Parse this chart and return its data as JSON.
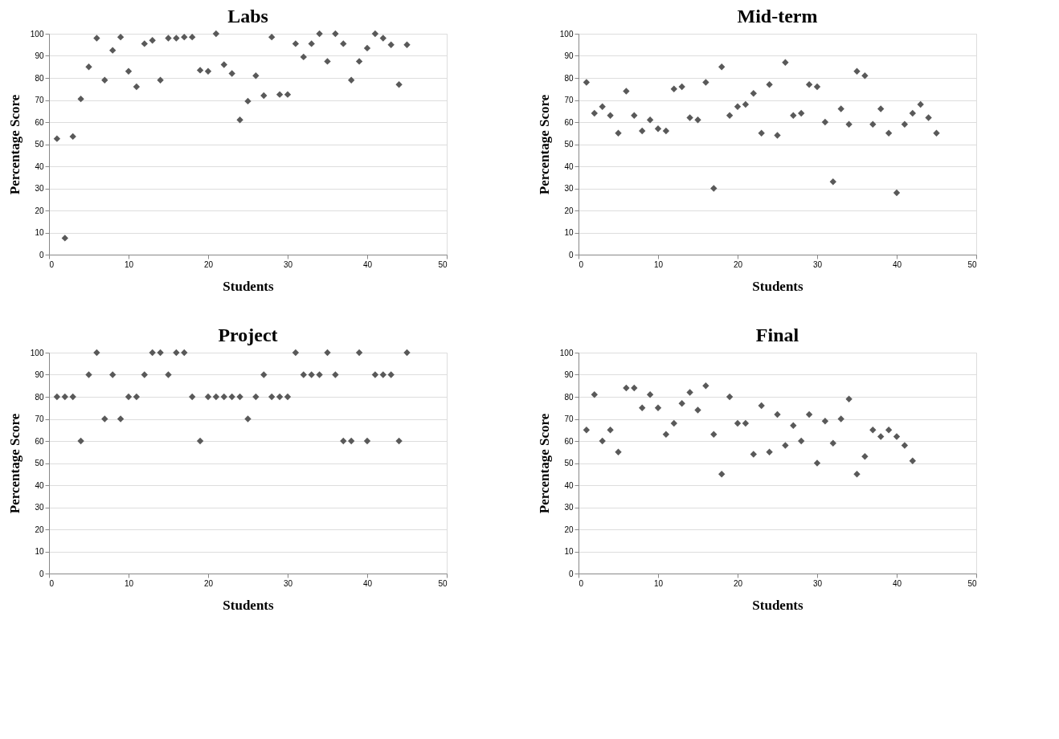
{
  "chart_data": [
    {
      "type": "scatter",
      "title": "Labs",
      "xlabel": "Students",
      "ylabel": "Percentage Score",
      "color": "#595959",
      "marker": "diamond",
      "grid": "y",
      "xlim": [
        0,
        50
      ],
      "xticks": [
        0,
        10,
        20,
        30,
        40,
        50
      ],
      "ylim": [
        0,
        100
      ],
      "yticks": [
        0,
        10,
        20,
        30,
        40,
        50,
        60,
        70,
        80,
        90,
        100
      ],
      "x": [
        1,
        2,
        3,
        4,
        5,
        6,
        7,
        8,
        9,
        10,
        11,
        12,
        13,
        14,
        15,
        16,
        17,
        18,
        19,
        20,
        21,
        22,
        23,
        24,
        25,
        26,
        27,
        28,
        29,
        30,
        31,
        32,
        33,
        34,
        35,
        36,
        37,
        38,
        39,
        40,
        41,
        42,
        43,
        44,
        45
      ],
      "values": [
        52.5,
        7.5,
        53.5,
        70.5,
        85,
        98,
        79,
        92.5,
        98.5,
        83,
        76,
        95.5,
        97,
        79,
        98,
        98,
        98.5,
        98.5,
        83.5,
        83,
        100,
        86,
        82,
        61,
        69.5,
        81,
        72,
        98.5,
        72.5,
        72.5,
        95.5,
        89.5,
        95.5,
        100,
        87.5,
        100,
        95.5,
        79,
        87.5,
        93.5,
        100,
        98,
        95,
        77,
        95
      ]
    },
    {
      "type": "scatter",
      "title": "Mid-term",
      "xlabel": "Students",
      "ylabel": "Percentage Score",
      "color": "#595959",
      "marker": "diamond",
      "grid": "y",
      "xlim": [
        0,
        50
      ],
      "xticks": [
        0,
        10,
        20,
        30,
        40,
        50
      ],
      "ylim": [
        0,
        100
      ],
      "yticks": [
        0,
        10,
        20,
        30,
        40,
        50,
        60,
        70,
        80,
        90,
        100
      ],
      "x": [
        1,
        2,
        3,
        4,
        5,
        6,
        7,
        8,
        9,
        10,
        11,
        12,
        13,
        14,
        15,
        16,
        17,
        18,
        19,
        20,
        21,
        22,
        23,
        24,
        25,
        26,
        27,
        28,
        29,
        30,
        31,
        32,
        33,
        34,
        35,
        36,
        37,
        38,
        39,
        40,
        41,
        42,
        43,
        44,
        45
      ],
      "values": [
        78,
        64,
        67,
        63,
        55,
        74,
        63,
        56,
        61,
        57,
        56,
        75,
        76,
        62,
        61,
        78,
        30,
        85,
        63,
        67,
        68,
        73,
        55,
        77,
        54,
        87,
        63,
        64,
        77,
        76,
        60,
        33,
        66,
        59,
        83,
        81,
        59,
        66,
        55,
        28,
        59,
        64,
        68,
        62,
        55
      ]
    },
    {
      "type": "scatter",
      "title": "Project",
      "xlabel": "Students",
      "ylabel": "Percentage Score",
      "color": "#595959",
      "marker": "diamond",
      "grid": "y",
      "xlim": [
        0,
        50
      ],
      "xticks": [
        0,
        10,
        20,
        30,
        40,
        50
      ],
      "ylim": [
        0,
        100
      ],
      "yticks": [
        0,
        10,
        20,
        30,
        40,
        50,
        60,
        70,
        80,
        90,
        100
      ],
      "x": [
        1,
        2,
        3,
        4,
        5,
        6,
        7,
        8,
        9,
        10,
        11,
        12,
        13,
        14,
        15,
        16,
        17,
        18,
        19,
        20,
        21,
        22,
        23,
        24,
        25,
        26,
        27,
        28,
        29,
        30,
        31,
        32,
        33,
        34,
        35,
        36,
        37,
        38,
        39,
        40,
        41,
        42,
        43,
        44,
        45
      ],
      "values": [
        80,
        80,
        80,
        60,
        90,
        100,
        70,
        90,
        70,
        80,
        80,
        90,
        100,
        100,
        90,
        100,
        100,
        80,
        60,
        80,
        80,
        80,
        80,
        80,
        70,
        80,
        90,
        80,
        80,
        80,
        100,
        90,
        90,
        90,
        100,
        90,
        60,
        60,
        100,
        60,
        90,
        90,
        90,
        60,
        100
      ]
    },
    {
      "type": "scatter",
      "title": "Final",
      "xlabel": "Students",
      "ylabel": "Percentage Score",
      "color": "#595959",
      "marker": "diamond",
      "grid": "y",
      "xlim": [
        0,
        50
      ],
      "xticks": [
        0,
        10,
        20,
        30,
        40,
        50
      ],
      "ylim": [
        0,
        100
      ],
      "yticks": [
        0,
        10,
        20,
        30,
        40,
        50,
        60,
        70,
        80,
        90,
        100
      ],
      "x": [
        1,
        2,
        3,
        4,
        5,
        6,
        7,
        8,
        9,
        10,
        11,
        12,
        13,
        14,
        15,
        16,
        17,
        18,
        19,
        20,
        21,
        22,
        23,
        24,
        25,
        26,
        27,
        28,
        29,
        30,
        31,
        32,
        33,
        34,
        35,
        36,
        37,
        38,
        39,
        40,
        41,
        42
      ],
      "values": [
        65,
        81,
        60,
        65,
        55,
        84,
        84,
        75,
        81,
        75,
        63,
        68,
        77,
        82,
        74,
        85,
        63,
        45,
        80,
        68,
        68,
        54,
        76,
        55,
        72,
        58,
        67,
        60,
        72,
        50,
        69,
        59,
        70,
        79,
        45,
        53,
        65,
        62,
        65,
        62,
        58,
        51
      ]
    }
  ]
}
